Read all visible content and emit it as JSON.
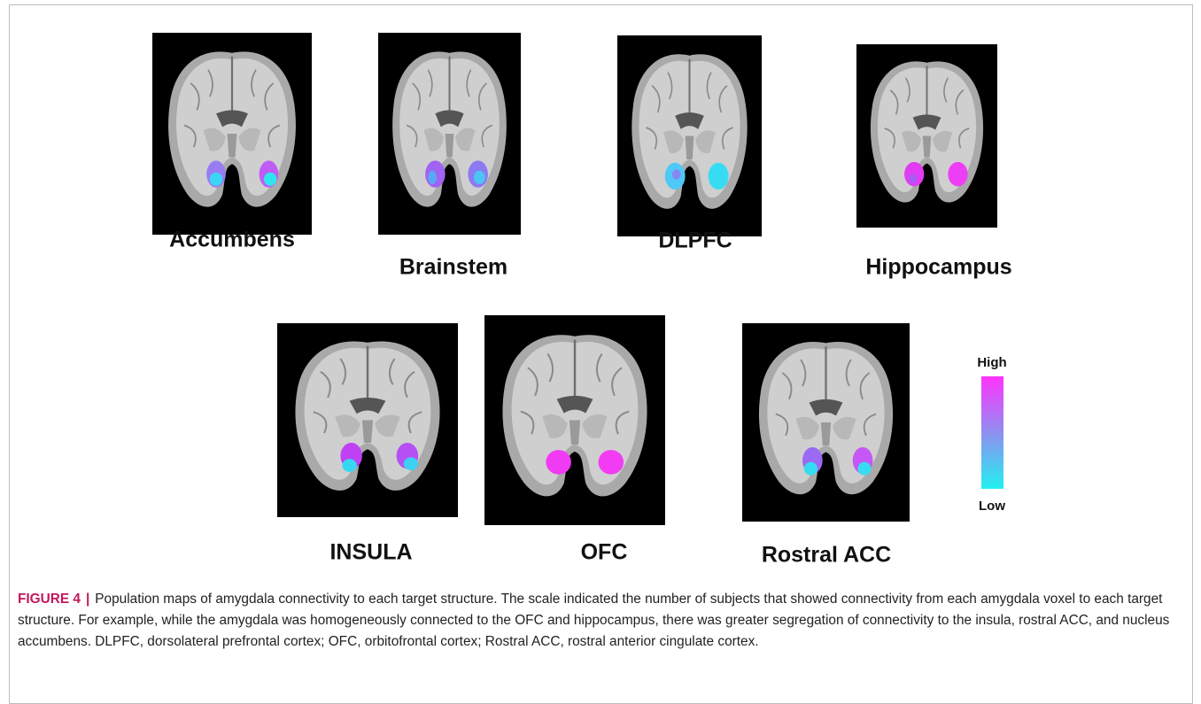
{
  "figure": {
    "panels": [
      {
        "label": "Accumbens"
      },
      {
        "label": "Brainstem"
      },
      {
        "label": "DLPFC"
      },
      {
        "label": "Hippocampus"
      },
      {
        "label": "INSULA"
      },
      {
        "label": "OFC"
      },
      {
        "label": "Rostral ACC"
      }
    ],
    "colorbar": {
      "high": "High",
      "low": "Low"
    },
    "caption": {
      "label": "FIGURE 4",
      "separator": "|",
      "text": "Population maps of amygdala connectivity to each target structure. The scale indicated the number of subjects that showed connectivity from each amygdala voxel to each target structure. For example, while the amygdala was homogeneously connected to the OFC and hippocampus, there was greater segregation of connectivity to the insula, rostral ACC, and nucleus accumbens. DLPFC, dorsolateral prefrontal cortex; OFC, orbitofrontal cortex; Rostral ACC, rostral anterior cingulate cortex."
    }
  }
}
